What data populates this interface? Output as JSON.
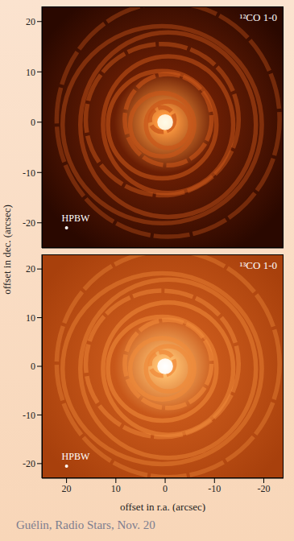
{
  "chart_data": [
    {
      "type": "image",
      "title": "¹²CO 1-0",
      "xlim": [
        25,
        -24
      ],
      "ylim": [
        -25,
        23
      ],
      "xticks": [
        20,
        10,
        0,
        -10,
        -20
      ],
      "yticks": [
        -20,
        -10,
        0,
        10,
        20
      ],
      "tick_labels": "y",
      "beam_label": "HPBW",
      "beam": {
        "x": 20,
        "y": -21
      }
    },
    {
      "type": "image",
      "title": "¹³CO 1-0",
      "xlabel": "offset in r.a. (arcsec)",
      "xlim": [
        25,
        -24
      ],
      "ylim": [
        -23,
        23
      ],
      "xticks": [
        20,
        10,
        0,
        -10,
        -20
      ],
      "yticks": [
        -20,
        -10,
        0,
        10,
        20
      ],
      "beam_label": "HPBW",
      "beam": {
        "x": 20,
        "y": -20.5
      }
    }
  ],
  "ylabel": "offset in dec. (arcsec)",
  "footer": "Guélin, Radio Stars, Nov. 20"
}
